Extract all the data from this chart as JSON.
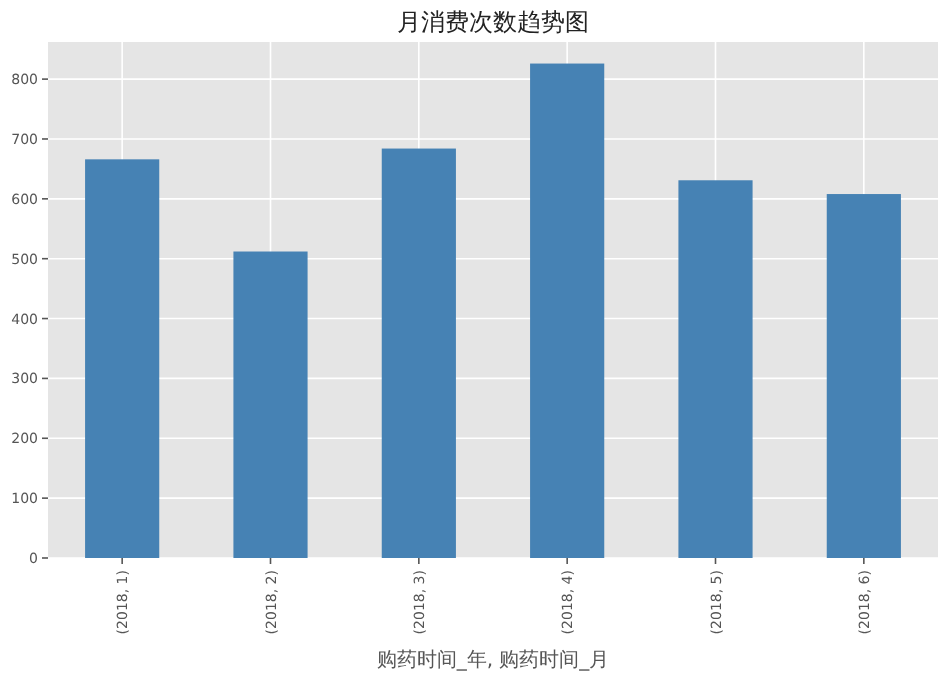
{
  "chart_data": {
    "type": "bar",
    "title": "月消费次数趋势图",
    "xlabel": "购药时间_年, 购药时间_月",
    "categories": [
      "(2018, 1)",
      "(2018, 2)",
      "(2018, 3)",
      "(2018, 4)",
      "(2018, 5)",
      "(2018, 6)"
    ],
    "values": [
      666,
      512,
      684,
      826,
      631,
      608
    ],
    "color": "#4682b4",
    "ylim": [
      0,
      862
    ],
    "yticks": [
      0,
      100,
      200,
      300,
      400,
      500,
      600,
      700,
      800
    ],
    "grid": true
  }
}
